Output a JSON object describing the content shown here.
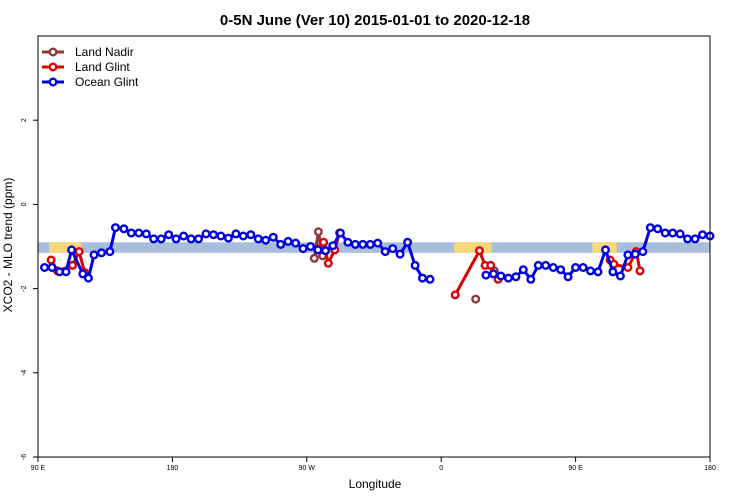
{
  "chart_data": {
    "type": "line",
    "title": "0-5N June (Ver 10)   2015-01-01 to 2020-12-18",
    "xlabel": "Longitude",
    "ylabel": "XCO2 - MLO trend (ppm)",
    "xlim": [
      90,
      450
    ],
    "ylim": [
      -6,
      4
    ],
    "x_ticks": [
      {
        "value": 90,
        "label": "90 E"
      },
      {
        "value": 162,
        "label": "180"
      },
      {
        "value": 234,
        "label": "90 W"
      },
      {
        "value": 306,
        "label": "0"
      },
      {
        "value": 378,
        "label": "90 E"
      },
      {
        "value": 450,
        "label": "180"
      }
    ],
    "y_ticks": [
      {
        "value": -6,
        "label": "-6"
      },
      {
        "value": -4,
        "label": "-4"
      },
      {
        "value": -2,
        "label": "-2"
      },
      {
        "value": 0,
        "label": "0"
      },
      {
        "value": 2,
        "label": "2"
      }
    ],
    "grid": false,
    "legend_position": "top-left",
    "band": {
      "y_min": -1.15,
      "y_max": -0.9,
      "color": "#a8bedc"
    },
    "land_patches": [
      {
        "x_min": 96,
        "x_max": 113,
        "color": "#f8d878"
      },
      {
        "x_min": 313,
        "x_max": 333,
        "color": "#f8d878"
      },
      {
        "x_min": 387,
        "x_max": 400,
        "color": "#f8d878"
      }
    ],
    "series": [
      {
        "name": "Land Nadir",
        "color": "#8b3a3a",
        "segments": [
          [
            [
              238.0,
              -1.28
            ],
            [
              240.2,
              -0.65
            ],
            [
              242.5,
              -1.22
            ]
          ],
          [
            [
              324.5,
              -2.25
            ]
          ],
          [
            [
              334.5,
              -1.58
            ]
          ]
        ]
      },
      {
        "name": "Land Glint",
        "color": "#e00000",
        "segments": [
          [
            [
              97.0,
              -1.32
            ],
            [
              100.5,
              -1.58
            ],
            [
              108.5,
              -1.45
            ],
            [
              112.0,
              -1.12
            ],
            [
              115.0,
              -1.62
            ]
          ],
          [
            [
              239.5,
              -1.05
            ],
            [
              243.0,
              -0.9
            ],
            [
              245.5,
              -1.4
            ],
            [
              249.0,
              -1.08
            ],
            [
              251.5,
              -0.68
            ]
          ],
          [
            [
              313.5,
              -2.15
            ],
            [
              326.5,
              -1.1
            ],
            [
              329.5,
              -1.45
            ],
            [
              332.5,
              -1.45
            ],
            [
              336.5,
              -1.78
            ]
          ],
          [
            [
              396.5,
              -1.32
            ],
            [
              398.5,
              -1.42
            ],
            [
              406.0,
              -1.5
            ],
            [
              410.5,
              -1.12
            ],
            [
              412.5,
              -1.58
            ]
          ]
        ]
      },
      {
        "name": "Ocean Glint",
        "color": "#0000e0",
        "segments": [
          [
            [
              93.5,
              -1.5
            ],
            [
              97.5,
              -1.5
            ],
            [
              101.5,
              -1.6
            ],
            [
              105.0,
              -1.6
            ],
            [
              108.0,
              -1.08
            ],
            [
              114.0,
              -1.65
            ],
            [
              117.0,
              -1.75
            ],
            [
              120.0,
              -1.2
            ],
            [
              124.0,
              -1.15
            ],
            [
              128.5,
              -1.12
            ],
            [
              131.5,
              -0.55
            ],
            [
              136.0,
              -0.58
            ],
            [
              140.0,
              -0.68
            ],
            [
              144.0,
              -0.68
            ],
            [
              148.0,
              -0.7
            ],
            [
              152.0,
              -0.82
            ],
            [
              156.0,
              -0.82
            ],
            [
              160.0,
              -0.72
            ],
            [
              164.0,
              -0.82
            ],
            [
              168.0,
              -0.75
            ],
            [
              172.0,
              -0.82
            ],
            [
              176.0,
              -0.82
            ],
            [
              180.0,
              -0.7
            ],
            [
              184.0,
              -0.72
            ],
            [
              188.0,
              -0.75
            ],
            [
              192.0,
              -0.8
            ],
            [
              196.0,
              -0.7
            ],
            [
              200.0,
              -0.75
            ],
            [
              204.0,
              -0.72
            ],
            [
              208.0,
              -0.82
            ],
            [
              212.0,
              -0.85
            ],
            [
              216.0,
              -0.78
            ],
            [
              220.0,
              -0.95
            ],
            [
              224.0,
              -0.88
            ],
            [
              228.0,
              -0.92
            ],
            [
              232.0,
              -1.05
            ],
            [
              236.0,
              -1.0
            ],
            [
              240.0,
              -1.08
            ],
            [
              244.0,
              -1.1
            ],
            [
              248.0,
              -0.98
            ],
            [
              252.0,
              -0.68
            ],
            [
              256.0,
              -0.9
            ],
            [
              260.0,
              -0.95
            ],
            [
              264.0,
              -0.95
            ],
            [
              268.0,
              -0.95
            ],
            [
              272.0,
              -0.92
            ],
            [
              276.0,
              -1.12
            ],
            [
              280.0,
              -1.05
            ],
            [
              284.0,
              -1.18
            ],
            [
              288.0,
              -0.9
            ],
            [
              292.0,
              -1.45
            ],
            [
              296.0,
              -1.75
            ],
            [
              300.0,
              -1.78
            ]
          ],
          [
            [
              330.0,
              -1.68
            ],
            [
              334.0,
              -1.65
            ],
            [
              338.0,
              -1.7
            ],
            [
              342.0,
              -1.75
            ],
            [
              346.0,
              -1.72
            ],
            [
              350.0,
              -1.55
            ],
            [
              354.0,
              -1.78
            ],
            [
              358.0,
              -1.45
            ],
            [
              362.0,
              -1.45
            ],
            [
              366.0,
              -1.5
            ],
            [
              370.0,
              -1.55
            ],
            [
              374.0,
              -1.72
            ],
            [
              378.0,
              -1.5
            ],
            [
              382.0,
              -1.5
            ],
            [
              386.0,
              -1.58
            ],
            [
              390.0,
              -1.6
            ],
            [
              394.0,
              -1.08
            ],
            [
              398.0,
              -1.6
            ],
            [
              402.0,
              -1.7
            ],
            [
              406.0,
              -1.2
            ],
            [
              410.0,
              -1.18
            ],
            [
              414.0,
              -1.12
            ],
            [
              418.0,
              -0.55
            ],
            [
              422.0,
              -0.58
            ],
            [
              426.0,
              -0.68
            ],
            [
              430.0,
              -0.68
            ],
            [
              434.0,
              -0.7
            ],
            [
              438.0,
              -0.82
            ],
            [
              442.0,
              -0.82
            ],
            [
              446.0,
              -0.72
            ],
            [
              450.0,
              -0.75
            ]
          ]
        ]
      }
    ]
  }
}
